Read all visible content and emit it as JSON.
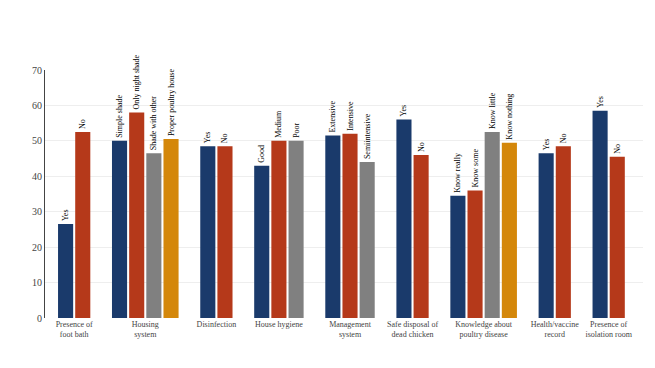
{
  "chart_data": {
    "type": "bar",
    "categories": [
      "Presence of\nfoot bath",
      "Housing\nsystem",
      "Disinfection",
      "House hygiene",
      "Management\nsystem",
      "Safe disposal of\ndead chicken",
      "Knowledge about\npoultry disease",
      "Health/vaccine\nrecord",
      "Presence of\nisolation room"
    ],
    "values": [
      [
        26.5,
        52.5
      ],
      [
        50,
        58,
        46.5,
        50.5
      ],
      [
        48.5,
        48.5
      ],
      [
        43,
        50,
        50
      ],
      [
        51.5,
        52,
        44
      ],
      [
        56,
        46
      ],
      [
        34.5,
        36,
        52.5,
        49.5
      ],
      [
        46.5,
        48.5
      ],
      [
        58.5,
        45.5
      ]
    ],
    "bar_labels": [
      [
        "Yes",
        "No"
      ],
      [
        "Simple shade",
        "Only night shade",
        "Shade with other",
        "Proper poultry house"
      ],
      [
        "Yes",
        "No"
      ],
      [
        "Good",
        "Medium",
        "Poor"
      ],
      [
        "Extensive",
        "Intensive",
        "Semiintensive"
      ],
      [
        "Yes",
        "No"
      ],
      [
        "Know really",
        "Know some",
        "Know little",
        "Know nothing"
      ],
      [
        "Yes",
        "No"
      ],
      [
        "Yes",
        "No"
      ]
    ],
    "colors": [
      [
        "#1a3a6b",
        "#b5391a"
      ],
      [
        "#1a3a6b",
        "#b5391a",
        "#808080",
        "#d4870a"
      ],
      [
        "#1a3a6b",
        "#b5391a"
      ],
      [
        "#1a3a6b",
        "#b5391a",
        "#808080"
      ],
      [
        "#1a3a6b",
        "#b5391a",
        "#808080"
      ],
      [
        "#1a3a6b",
        "#b5391a"
      ],
      [
        "#1a3a6b",
        "#b5391a",
        "#808080",
        "#d4870a"
      ],
      [
        "#1a3a6b",
        "#b5391a"
      ],
      [
        "#1a3a6b",
        "#b5391a"
      ]
    ],
    "ylim": [
      0,
      70
    ],
    "yticks": [
      0,
      10,
      20,
      30,
      40,
      50,
      60,
      70
    ],
    "grid": true
  }
}
